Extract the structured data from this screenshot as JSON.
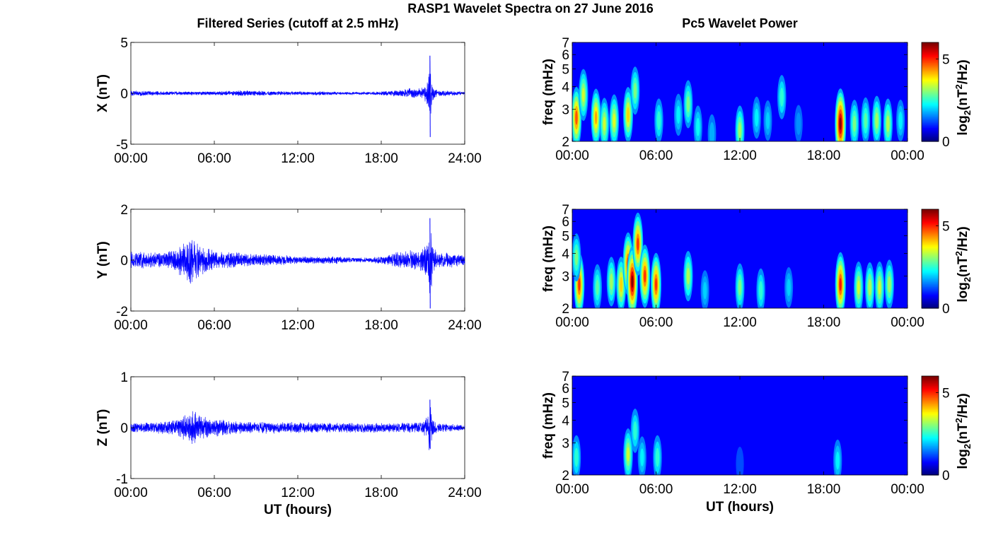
{
  "figure": {
    "suptitle": "RASP1 Wavelet Spectra on 27 June 2016",
    "left_title": "Filtered Series (cutoff at 2.5 mHz)",
    "right_title": "Pc5 Wavelet Power"
  },
  "chart_data": [
    {
      "type": "line",
      "component": "X",
      "ylabel": "X (nT)",
      "xlabel": "",
      "ylim": [
        -5,
        5
      ],
      "yticks": [
        "5",
        "0",
        "-5"
      ],
      "xticks": [
        "00:00",
        "06:00",
        "12:00",
        "18:00",
        "24:00"
      ],
      "xlim_hours": [
        0,
        24
      ],
      "color": "#0000ff",
      "envelope": {
        "hours": [
          0,
          1,
          2,
          3,
          4,
          5,
          6,
          7,
          8,
          9,
          10,
          11,
          12,
          13,
          14,
          15,
          16,
          17,
          18,
          19,
          20,
          20.5,
          21,
          21.3,
          21.5,
          21.7,
          22,
          23,
          24
        ],
        "amplitude_nT": [
          0.3,
          0.25,
          0.2,
          0.2,
          0.2,
          0.2,
          0.2,
          0.25,
          0.3,
          0.25,
          0.25,
          0.2,
          0.2,
          0.2,
          0.2,
          0.15,
          0.15,
          0.15,
          0.2,
          0.3,
          0.5,
          0.5,
          0.6,
          1.2,
          3.7,
          0.8,
          0.3,
          0.25,
          0.15
        ]
      },
      "extremes": {
        "max": 3.7,
        "min": -4.3
      }
    },
    {
      "type": "line",
      "component": "Y",
      "ylabel": "Y (nT)",
      "xlabel": "",
      "ylim": [
        -2,
        2
      ],
      "yticks": [
        "2",
        "0",
        "-2"
      ],
      "xticks": [
        "00:00",
        "06:00",
        "12:00",
        "18:00",
        "24:00"
      ],
      "xlim_hours": [
        0,
        24
      ],
      "color": "#0000ff",
      "envelope": {
        "hours": [
          0,
          1,
          2,
          3,
          3.5,
          4,
          4.3,
          4.6,
          5,
          5.5,
          6,
          7,
          8,
          9,
          10,
          11,
          12,
          13,
          14,
          15,
          16,
          17,
          18,
          19,
          20,
          20.5,
          21,
          21.3,
          21.5,
          21.8,
          22,
          23,
          24
        ],
        "amplitude_nT": [
          0.35,
          0.35,
          0.3,
          0.4,
          0.6,
          0.8,
          1.0,
          0.8,
          0.6,
          0.5,
          0.35,
          0.35,
          0.3,
          0.25,
          0.25,
          0.2,
          0.15,
          0.15,
          0.15,
          0.15,
          0.1,
          0.1,
          0.15,
          0.3,
          0.4,
          0.4,
          0.5,
          0.7,
          1.65,
          0.5,
          0.3,
          0.3,
          0.2
        ]
      },
      "extremes": {
        "max": 1.65,
        "min": -1.9
      }
    },
    {
      "type": "line",
      "component": "Z",
      "ylabel": "Z (nT)",
      "xlabel": "UT (hours)",
      "ylim": [
        -1,
        1
      ],
      "yticks": [
        "1",
        "0",
        "-1"
      ],
      "xticks": [
        "00:00",
        "06:00",
        "12:00",
        "18:00",
        "24:00"
      ],
      "xlim_hours": [
        0,
        24
      ],
      "color": "#0000ff",
      "envelope": {
        "hours": [
          0,
          1,
          2,
          3,
          3.5,
          4,
          4.5,
          5,
          5.5,
          6,
          7,
          8,
          9,
          10,
          11,
          12,
          13,
          14,
          15,
          16,
          17,
          18,
          19,
          20,
          21,
          21.3,
          21.5,
          21.7,
          22,
          23,
          24
        ],
        "amplitude_nT": [
          0.1,
          0.1,
          0.12,
          0.15,
          0.2,
          0.3,
          0.35,
          0.25,
          0.2,
          0.18,
          0.15,
          0.13,
          0.12,
          0.12,
          0.12,
          0.12,
          0.12,
          0.1,
          0.1,
          0.1,
          0.1,
          0.1,
          0.1,
          0.1,
          0.12,
          0.25,
          0.55,
          0.2,
          0.1,
          0.08,
          0.05
        ]
      },
      "extremes": {
        "max": 0.55,
        "min": -0.42
      }
    },
    {
      "type": "heatmap",
      "component": "X",
      "ylabel": "freq (mHz)",
      "xlabel": "",
      "ylim_mHz": [
        2,
        7
      ],
      "y_scale": "log",
      "yticks": [
        "2",
        "3",
        "4",
        "5",
        "6",
        "7"
      ],
      "xticks": [
        "00:00",
        "06:00",
        "12:00",
        "18:00",
        "00:00"
      ],
      "xlim_hours": [
        0,
        24
      ],
      "colorbar": {
        "label": "log2(nT^2/Hz)",
        "ticks": [
          "0",
          "5"
        ],
        "range": [
          0,
          6
        ],
        "colormap": "jet"
      },
      "blobs": [
        {
          "hour": 0.3,
          "freq_mHz": 2.7,
          "power": 4.8
        },
        {
          "hour": 0.8,
          "freq_mHz": 3.6,
          "power": 3.5
        },
        {
          "hour": 1.7,
          "freq_mHz": 2.7,
          "power": 4.3
        },
        {
          "hour": 2.3,
          "freq_mHz": 2.5,
          "power": 3.5
        },
        {
          "hour": 3.0,
          "freq_mHz": 2.6,
          "power": 3.6
        },
        {
          "hour": 4.0,
          "freq_mHz": 2.8,
          "power": 4.0
        },
        {
          "hour": 4.5,
          "freq_mHz": 3.8,
          "power": 3.0
        },
        {
          "hour": 6.2,
          "freq_mHz": 2.6,
          "power": 2.5
        },
        {
          "hour": 7.6,
          "freq_mHz": 2.8,
          "power": 2.2
        },
        {
          "hour": 8.3,
          "freq_mHz": 3.2,
          "power": 3.0
        },
        {
          "hour": 9.0,
          "freq_mHz": 2.4,
          "power": 2.3
        },
        {
          "hour": 10.0,
          "freq_mHz": 2.2,
          "power": 1.8
        },
        {
          "hour": 12.0,
          "freq_mHz": 2.3,
          "power": 3.2
        },
        {
          "hour": 13.2,
          "freq_mHz": 2.7,
          "power": 2.2
        },
        {
          "hour": 14.0,
          "freq_mHz": 2.6,
          "power": 2.0
        },
        {
          "hour": 15.0,
          "freq_mHz": 3.5,
          "power": 2.5
        },
        {
          "hour": 16.2,
          "freq_mHz": 2.5,
          "power": 1.6
        },
        {
          "hour": 19.2,
          "freq_mHz": 2.5,
          "power": 6.0
        },
        {
          "hour": 20.2,
          "freq_mHz": 2.5,
          "power": 3.0
        },
        {
          "hour": 21.0,
          "freq_mHz": 2.6,
          "power": 2.8
        },
        {
          "hour": 21.8,
          "freq_mHz": 2.6,
          "power": 3.2
        },
        {
          "hour": 22.6,
          "freq_mHz": 2.5,
          "power": 3.3
        },
        {
          "hour": 23.5,
          "freq_mHz": 2.6,
          "power": 2.2
        }
      ]
    },
    {
      "type": "heatmap",
      "component": "Y",
      "ylabel": "freq (mHz)",
      "xlabel": "",
      "ylim_mHz": [
        2,
        7
      ],
      "y_scale": "log",
      "yticks": [
        "2",
        "3",
        "4",
        "5",
        "6",
        "7"
      ],
      "xticks": [
        "00:00",
        "06:00",
        "12:00",
        "18:00",
        "00:00"
      ],
      "xlim_hours": [
        0,
        24
      ],
      "colorbar": {
        "label": "log2(nT^2/Hz)",
        "ticks": [
          "0",
          "5"
        ],
        "range": [
          0,
          6
        ],
        "colormap": "jet"
      },
      "blobs": [
        {
          "hour": 0.5,
          "freq_mHz": 2.7,
          "power": 5.0
        },
        {
          "hour": 0.3,
          "freq_mHz": 3.8,
          "power": 3.0
        },
        {
          "hour": 1.8,
          "freq_mHz": 2.6,
          "power": 2.8
        },
        {
          "hour": 2.8,
          "freq_mHz": 2.8,
          "power": 3.2
        },
        {
          "hour": 3.5,
          "freq_mHz": 2.7,
          "power": 4.0
        },
        {
          "hour": 4.0,
          "freq_mHz": 3.5,
          "power": 5.0
        },
        {
          "hour": 4.3,
          "freq_mHz": 2.8,
          "power": 6.0
        },
        {
          "hour": 4.7,
          "freq_mHz": 4.5,
          "power": 5.0
        },
        {
          "hour": 5.2,
          "freq_mHz": 3.0,
          "power": 5.0
        },
        {
          "hour": 6.0,
          "freq_mHz": 2.7,
          "power": 5.0
        },
        {
          "hour": 8.3,
          "freq_mHz": 3.0,
          "power": 3.3
        },
        {
          "hour": 9.5,
          "freq_mHz": 2.5,
          "power": 2.0
        },
        {
          "hour": 12.0,
          "freq_mHz": 2.6,
          "power": 3.0
        },
        {
          "hour": 13.5,
          "freq_mHz": 2.5,
          "power": 2.5
        },
        {
          "hour": 15.5,
          "freq_mHz": 2.6,
          "power": 2.0
        },
        {
          "hour": 19.2,
          "freq_mHz": 2.7,
          "power": 5.2
        },
        {
          "hour": 20.5,
          "freq_mHz": 2.6,
          "power": 3.5
        },
        {
          "hour": 21.3,
          "freq_mHz": 2.6,
          "power": 3.3
        },
        {
          "hour": 22.0,
          "freq_mHz": 2.6,
          "power": 3.5
        },
        {
          "hour": 22.7,
          "freq_mHz": 2.7,
          "power": 3.2
        }
      ]
    },
    {
      "type": "heatmap",
      "component": "Z",
      "ylabel": "freq (mHz)",
      "xlabel": "UT (hours)",
      "ylim_mHz": [
        2,
        7
      ],
      "y_scale": "log",
      "yticks": [
        "2",
        "3",
        "4",
        "5",
        "6",
        "7"
      ],
      "xticks": [
        "00:00",
        "06:00",
        "12:00",
        "18:00",
        "00:00"
      ],
      "xlim_hours": [
        0,
        24
      ],
      "colorbar": {
        "label": "log2(nT^2/Hz)",
        "ticks": [
          "0",
          "5"
        ],
        "range": [
          0,
          6
        ],
        "colormap": "jet"
      },
      "blobs": [
        {
          "hour": 0.3,
          "freq_mHz": 2.5,
          "power": 2.5
        },
        {
          "hour": 4.0,
          "freq_mHz": 2.6,
          "power": 3.5
        },
        {
          "hour": 4.5,
          "freq_mHz": 3.5,
          "power": 2.5
        },
        {
          "hour": 5.0,
          "freq_mHz": 2.5,
          "power": 2.2
        },
        {
          "hour": 6.1,
          "freq_mHz": 2.5,
          "power": 2.5
        },
        {
          "hour": 12.0,
          "freq_mHz": 2.3,
          "power": 1.2
        },
        {
          "hour": 19.0,
          "freq_mHz": 2.4,
          "power": 2.2
        }
      ]
    }
  ]
}
